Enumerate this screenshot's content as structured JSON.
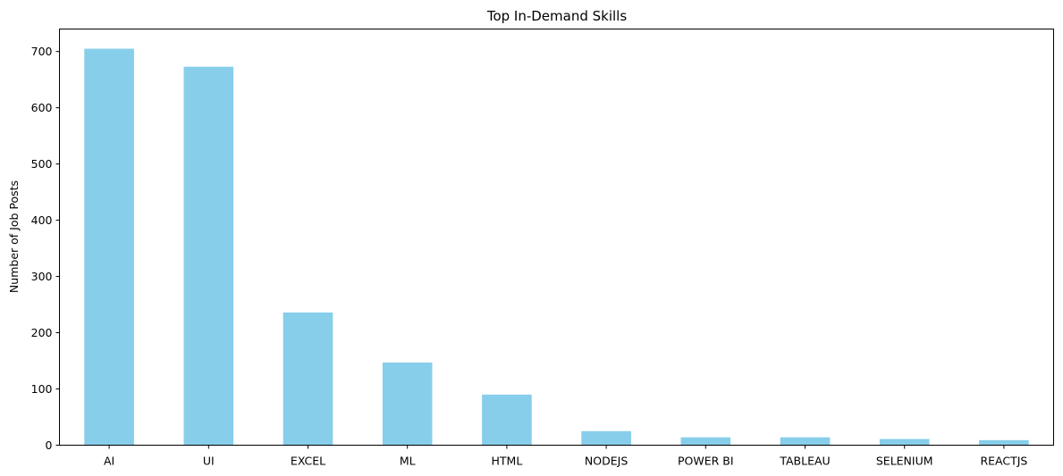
{
  "chart_data": {
    "type": "bar",
    "title": "Top In-Demand Skills",
    "xlabel": "",
    "ylabel": "Number of Job Posts",
    "categories": [
      "AI",
      "UI",
      "EXCEL",
      "ML",
      "HTML",
      "NODEJS",
      "POWER BI",
      "TABLEAU",
      "SELENIUM",
      "REACTJS"
    ],
    "values": [
      705,
      673,
      236,
      147,
      90,
      25,
      14,
      14,
      11,
      9
    ],
    "ylim": [
      0,
      740
    ],
    "yticks": [
      0,
      100,
      200,
      300,
      400,
      500,
      600,
      700
    ],
    "grid": false,
    "legend": "none",
    "bar_color": "#87CEEB"
  }
}
